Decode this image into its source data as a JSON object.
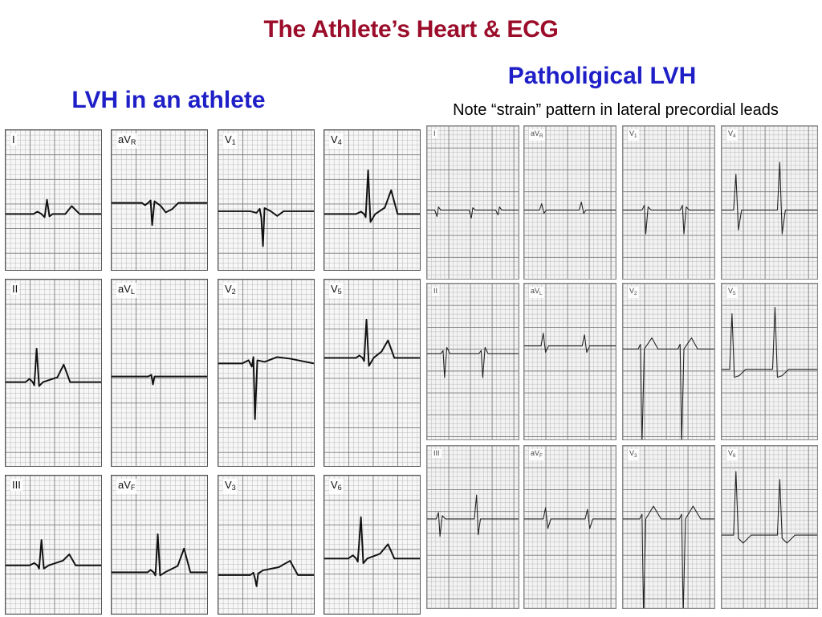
{
  "slide": {
    "title": "The Athlete’s Heart & ECG",
    "title_color": "#9b0d2a",
    "heading_color": "#1f1fc7",
    "left_heading": "LVH in an athlete",
    "right_heading": "Patholigical LVH",
    "right_note": "Note “strain” pattern in lateral precordial leads"
  },
  "athlete": {
    "leads": [
      {
        "id": "I",
        "main": "I",
        "sub": ""
      },
      {
        "id": "aVR",
        "main": "aV",
        "sub": "R"
      },
      {
        "id": "V1",
        "main": "V",
        "sub": "1"
      },
      {
        "id": "V4",
        "main": "V",
        "sub": "4"
      },
      {
        "id": "II",
        "main": "II",
        "sub": ""
      },
      {
        "id": "aVL",
        "main": "aV",
        "sub": "L"
      },
      {
        "id": "V2",
        "main": "V",
        "sub": "2"
      },
      {
        "id": "V5",
        "main": "V",
        "sub": "5"
      },
      {
        "id": "III",
        "main": "III",
        "sub": ""
      },
      {
        "id": "aVF",
        "main": "aV",
        "sub": "F"
      },
      {
        "id": "V3",
        "main": "V",
        "sub": "3"
      },
      {
        "id": "V6",
        "main": "V",
        "sub": "6"
      }
    ]
  },
  "pathological": {
    "leads": [
      {
        "id": "I",
        "main": "I",
        "sub": ""
      },
      {
        "id": "aVR",
        "main": "aV",
        "sub": "R"
      },
      {
        "id": "V1",
        "main": "V",
        "sub": "1"
      },
      {
        "id": "V4",
        "main": "V",
        "sub": "4"
      },
      {
        "id": "II",
        "main": "II",
        "sub": ""
      },
      {
        "id": "aVL",
        "main": "aV",
        "sub": "L"
      },
      {
        "id": "V2",
        "main": "V",
        "sub": "2"
      },
      {
        "id": "V5",
        "main": "V",
        "sub": "5"
      },
      {
        "id": "III",
        "main": "III",
        "sub": ""
      },
      {
        "id": "aVF",
        "main": "aV",
        "sub": "F"
      },
      {
        "id": "V3",
        "main": "V",
        "sub": "3"
      },
      {
        "id": "V6",
        "main": "V",
        "sub": "6"
      }
    ]
  }
}
